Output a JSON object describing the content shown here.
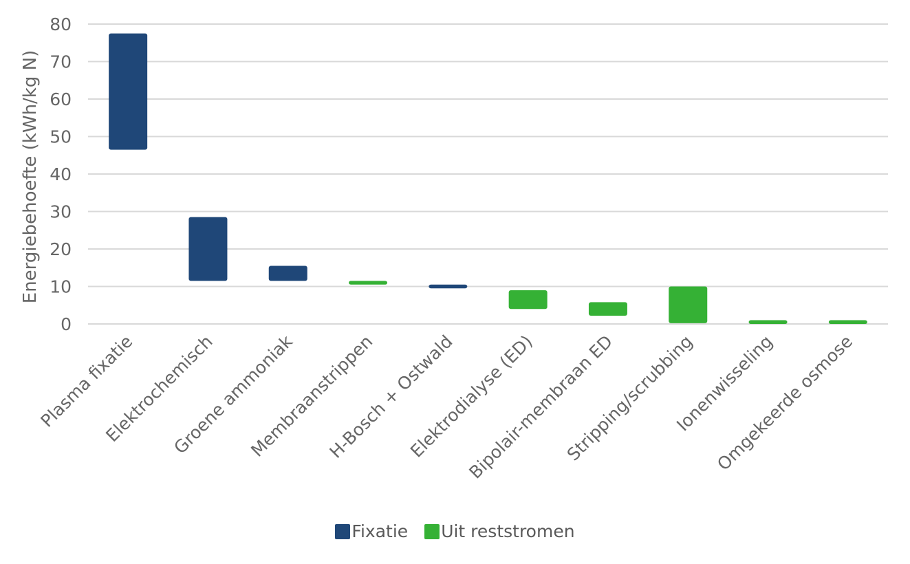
{
  "chart_data": {
    "type": "bar",
    "subtype": "floating-range",
    "title": "",
    "xlabel": "",
    "ylabel": "Energiebehoefte (kWh/kg N)",
    "ylim": [
      0,
      80
    ],
    "yticks": [
      0,
      10,
      20,
      30,
      40,
      50,
      60,
      70,
      80
    ],
    "grid": true,
    "legend_position": "bottom",
    "categories": [
      "Plasma fixatie",
      "Elektrochemisch",
      "Groene ammoniak",
      "Membraanstrippen",
      "H-Bosch + Ostwald",
      "Elektrodialyse (ED)",
      "Bipolair-membraan ED",
      "Stripping/scrubbing",
      "Ionenwisseling",
      "Omgekeerde osmose"
    ],
    "series": [
      {
        "name": "Fixatie",
        "color": "#1f4778"
      },
      {
        "name": "Uit reststromen",
        "color": "#35b135"
      }
    ],
    "bars": [
      {
        "category": "Plasma fixatie",
        "series": "Fixatie",
        "low": 46.5,
        "high": 77.5
      },
      {
        "category": "Elektrochemisch",
        "series": "Fixatie",
        "low": 11.5,
        "high": 28.5
      },
      {
        "category": "Groene ammoniak",
        "series": "Fixatie",
        "low": 11.5,
        "high": 15.5
      },
      {
        "category": "Membraanstrippen",
        "series": "Uit reststromen",
        "low": 10.5,
        "high": 11.5
      },
      {
        "category": "H-Bosch + Ostwald",
        "series": "Fixatie",
        "low": 9.5,
        "high": 10.5
      },
      {
        "category": "Elektrodialyse (ED)",
        "series": "Uit reststromen",
        "low": 4,
        "high": 9
      },
      {
        "category": "Bipolair-membraan ED",
        "series": "Uit reststromen",
        "low": 2.2,
        "high": 5.8
      },
      {
        "category": "Stripping/scrubbing",
        "series": "Uit reststromen",
        "low": 0.2,
        "high": 10
      },
      {
        "category": "Ionenwisseling",
        "series": "Uit reststromen",
        "low": 0,
        "high": 1
      },
      {
        "category": "Omgekeerde osmose",
        "series": "Uit reststromen",
        "low": 0,
        "high": 1
      }
    ]
  }
}
